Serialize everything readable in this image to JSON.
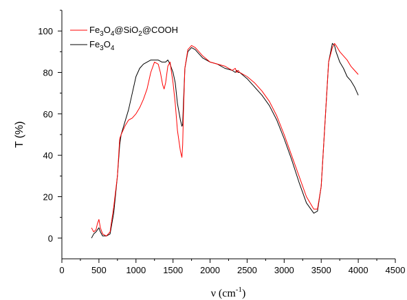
{
  "chart_data": {
    "type": "line",
    "title": "",
    "xlabel": "ν (cm",
    "xlabel_sup": "-1",
    "xlabel_close": ")",
    "ylabel": "T (%)",
    "xlim": [
      0,
      4500
    ],
    "ylim": [
      -10,
      110
    ],
    "x_ticks": [
      0,
      500,
      1000,
      1500,
      2000,
      2500,
      3000,
      3500,
      4000,
      4500
    ],
    "y_ticks": [
      0,
      20,
      40,
      60,
      80,
      100
    ],
    "grid": false,
    "legend_position": "top-left",
    "series": [
      {
        "name": "Fe3O4@SiO2@COOH",
        "legend_parts": [
          {
            "t": "Fe",
            "sub": false
          },
          {
            "t": "3",
            "sub": true
          },
          {
            "t": "O",
            "sub": false
          },
          {
            "t": "4",
            "sub": true
          },
          {
            "t": "@SiO",
            "sub": false
          },
          {
            "t": "2",
            "sub": true
          },
          {
            "t": "@COOH",
            "sub": false
          }
        ],
        "color": "#ff0000",
        "x": [
          400,
          430,
          460,
          480,
          500,
          520,
          550,
          600,
          650,
          700,
          750,
          780,
          800,
          850,
          900,
          950,
          1000,
          1050,
          1100,
          1150,
          1200,
          1250,
          1300,
          1330,
          1360,
          1380,
          1400,
          1430,
          1460,
          1480,
          1500,
          1530,
          1560,
          1600,
          1620,
          1630,
          1640,
          1660,
          1700,
          1750,
          1800,
          1850,
          1900,
          2000,
          2100,
          2200,
          2300,
          2340,
          2360,
          2380,
          2400,
          2500,
          2600,
          2700,
          2800,
          2900,
          3000,
          3100,
          3200,
          3300,
          3400,
          3450,
          3500,
          3550,
          3600,
          3650,
          3680,
          3700,
          3750,
          3800,
          3850,
          3900,
          3950,
          4000
        ],
        "y": [
          5,
          3,
          4,
          7,
          9,
          5,
          2,
          1,
          3,
          15,
          30,
          48,
          50,
          54,
          57,
          58,
          60,
          63,
          67,
          72,
          80,
          85,
          84,
          80,
          74,
          72,
          75,
          83,
          85,
          80,
          75,
          65,
          52,
          42,
          39,
          45,
          60,
          82,
          91,
          93,
          92,
          90,
          88,
          85,
          84,
          83,
          81,
          82,
          80,
          81,
          80,
          78,
          75,
          71,
          66,
          59,
          50,
          40,
          30,
          20,
          14,
          14,
          25,
          55,
          85,
          92,
          94,
          93,
          90,
          88,
          86,
          83,
          81,
          79
        ]
      },
      {
        "name": "Fe3O4",
        "legend_parts": [
          {
            "t": "Fe",
            "sub": false
          },
          {
            "t": "3",
            "sub": true
          },
          {
            "t": "O",
            "sub": false
          },
          {
            "t": "4",
            "sub": true
          }
        ],
        "color": "#000000",
        "x": [
          400,
          430,
          460,
          480,
          500,
          520,
          550,
          600,
          650,
          700,
          750,
          780,
          800,
          850,
          900,
          950,
          1000,
          1050,
          1100,
          1150,
          1200,
          1250,
          1300,
          1350,
          1400,
          1430,
          1460,
          1480,
          1500,
          1530,
          1560,
          1600,
          1620,
          1630,
          1640,
          1660,
          1700,
          1750,
          1800,
          1850,
          1900,
          2000,
          2100,
          2200,
          2300,
          2340,
          2360,
          2380,
          2400,
          2500,
          2600,
          2700,
          2800,
          2900,
          3000,
          3100,
          3200,
          3300,
          3400,
          3450,
          3500,
          3550,
          3600,
          3650,
          3680,
          3700,
          3750,
          3800,
          3850,
          3900,
          3950,
          4000
        ],
        "y": [
          0,
          2,
          3,
          4,
          5,
          3,
          1,
          1,
          2,
          12,
          30,
          45,
          50,
          56,
          62,
          70,
          78,
          82,
          84,
          85,
          86,
          86,
          86,
          85,
          85,
          86,
          84,
          82,
          80,
          75,
          65,
          57,
          54,
          55,
          65,
          82,
          90,
          92,
          91,
          89,
          87,
          85,
          84,
          82,
          81,
          80,
          81,
          80,
          80,
          77,
          73,
          69,
          64,
          57,
          48,
          38,
          27,
          17,
          12,
          13,
          25,
          55,
          85,
          94,
          93,
          90,
          85,
          82,
          78,
          76,
          73,
          69
        ]
      }
    ]
  }
}
